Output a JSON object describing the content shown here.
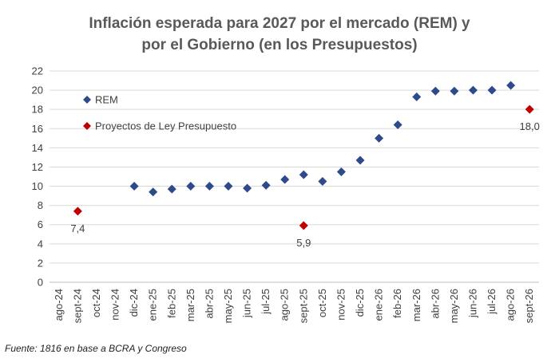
{
  "chart_data": {
    "type": "scatter",
    "title_lines": [
      "Inflación esperada para 2027 por el mercado (REM) y",
      "por el Gobierno (en los Presupuestos)"
    ],
    "categories": [
      "ago-24",
      "sept-24",
      "oct-24",
      "nov-24",
      "dic-24",
      "ene-25",
      "feb-25",
      "mar-25",
      "abr-25",
      "may-25",
      "jun-25",
      "jul-25",
      "ago-25",
      "sept-25",
      "oct-25",
      "nov-25",
      "dic-25",
      "ene-26",
      "feb-26",
      "mar-26",
      "abr-26",
      "may-26",
      "jun-26",
      "jul-26",
      "ago-26",
      "sept-26"
    ],
    "ylim": [
      0,
      22
    ],
    "yticks": [
      0,
      2,
      4,
      6,
      8,
      10,
      12,
      14,
      16,
      18,
      20,
      22
    ],
    "grid": true,
    "legend_position": "top-left",
    "series": [
      {
        "name": "REM",
        "color": "#2e4a8a",
        "marker": "diamond",
        "points": [
          {
            "x": "dic-24",
            "y": 10.0
          },
          {
            "x": "ene-25",
            "y": 9.4
          },
          {
            "x": "feb-25",
            "y": 9.7
          },
          {
            "x": "mar-25",
            "y": 10.0
          },
          {
            "x": "abr-25",
            "y": 10.0
          },
          {
            "x": "may-25",
            "y": 10.0
          },
          {
            "x": "jun-25",
            "y": 9.8
          },
          {
            "x": "jul-25",
            "y": 10.1
          },
          {
            "x": "ago-25",
            "y": 10.7
          },
          {
            "x": "sept-25",
            "y": 11.2
          },
          {
            "x": "oct-25",
            "y": 10.5
          },
          {
            "x": "nov-25",
            "y": 11.5
          },
          {
            "x": "dic-25",
            "y": 12.7
          },
          {
            "x": "ene-26",
            "y": 15.0
          },
          {
            "x": "feb-26",
            "y": 16.4
          },
          {
            "x": "mar-26",
            "y": 19.3
          },
          {
            "x": "abr-26",
            "y": 19.9
          },
          {
            "x": "may-26",
            "y": 19.9
          },
          {
            "x": "jun-26",
            "y": 20.0
          },
          {
            "x": "jul-26",
            "y": 20.0
          },
          {
            "x": "ago-26",
            "y": 20.5
          }
        ]
      },
      {
        "name": "Proyectos de Ley Presupuesto",
        "color": "#c00000",
        "marker": "diamond",
        "points": [
          {
            "x": "sept-24",
            "y": 7.4,
            "label": "7,4"
          },
          {
            "x": "sept-25",
            "y": 5.9,
            "label": "5,9"
          },
          {
            "x": "sept-26",
            "y": 18.0,
            "label": "18,0"
          }
        ]
      }
    ],
    "source": "Fuente: 1816 en base a BCRA y Congreso"
  }
}
